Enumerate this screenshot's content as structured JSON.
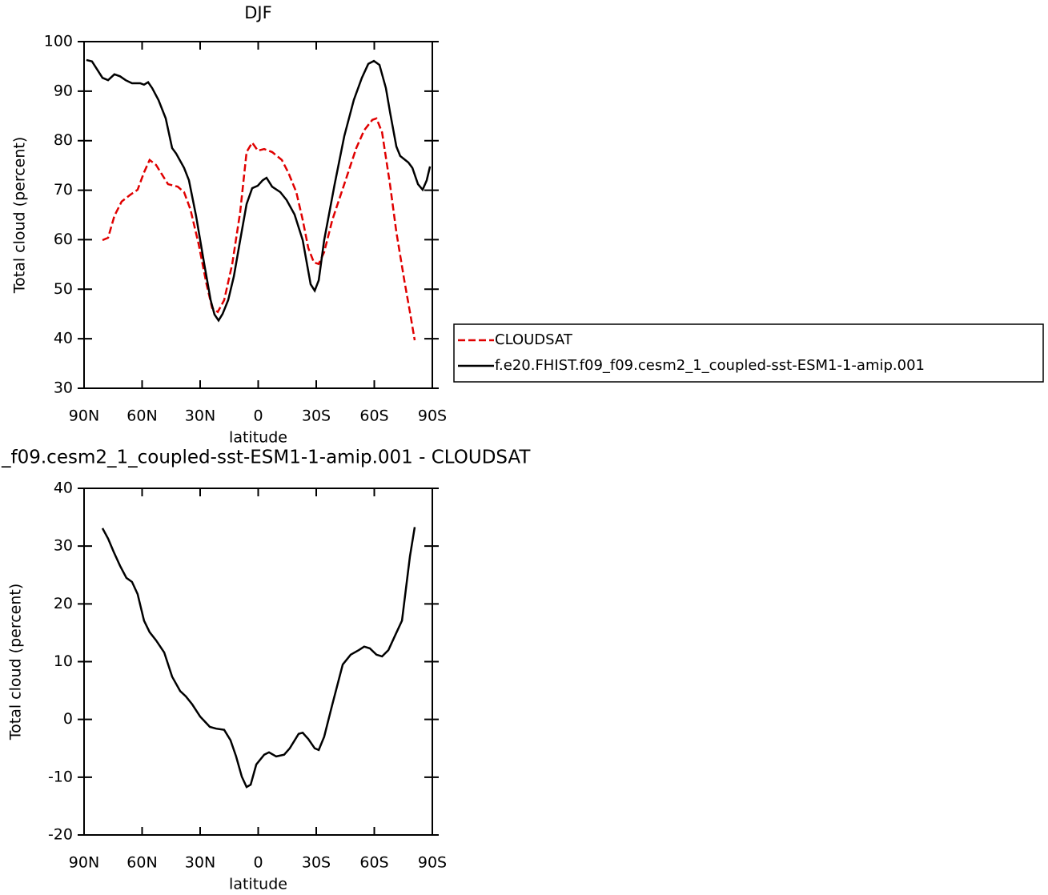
{
  "chart_data": [
    {
      "type": "line",
      "title": "DJF",
      "xlabel": "latitude",
      "ylabel": "Total cloud (percent)",
      "xlim": [
        90,
        -90
      ],
      "xticks": [
        {
          "value": 90,
          "label": "90N"
        },
        {
          "value": 60,
          "label": "60N"
        },
        {
          "value": 30,
          "label": "30N"
        },
        0,
        {
          "value": -30,
          "label": "30S"
        },
        {
          "value": -60,
          "label": "60S"
        },
        {
          "value": -90,
          "label": "90S"
        }
      ],
      "ylim": [
        30,
        100
      ],
      "yticks": [
        30,
        40,
        50,
        60,
        70,
        80,
        90,
        100
      ],
      "legend": "right",
      "series": [
        {
          "name": "CLOUDSAT",
          "color": "#e00000",
          "dash": true,
          "x": [
            80.5,
            77.6,
            74.3,
            70.6,
            66,
            62.3,
            59,
            56.1,
            52.8,
            46.6,
            41.6,
            38.3,
            35,
            30.8,
            26.7,
            23.8,
            20.9,
            17.6,
            13.4,
            9.3,
            6,
            3.1,
            0.2,
            -3.1,
            -7.2,
            -12.2,
            -15.5,
            -19.7,
            -23,
            -25.9,
            -28.8,
            -31.3,
            -34.1,
            -38.3,
            -44.5,
            -50.7,
            -54.8,
            -59,
            -61.1,
            -64,
            -68.1,
            -71.4,
            -75.5,
            -78.4,
            -80.9
          ],
          "values": [
            59.9,
            60.4,
            64.8,
            67.7,
            69.1,
            70.1,
            73.6,
            76.1,
            75.1,
            71.2,
            70.7,
            69.6,
            66.1,
            59.1,
            51,
            46.2,
            45.4,
            47.8,
            55.1,
            65.6,
            77.7,
            79.6,
            78,
            78.3,
            77.7,
            76.1,
            73.6,
            69.6,
            64,
            58.3,
            55.4,
            55.1,
            57.5,
            64,
            71.2,
            78.5,
            82.1,
            84.2,
            84.5,
            81.7,
            71.2,
            61.5,
            51.8,
            45.4,
            39.7
          ]
        },
        {
          "name": "f.e20.FHIST.f09_f09.cesm2_1_coupled-sst-ESM1-1-amip.001",
          "color": "#000000",
          "dash": false,
          "x": [
            88.8,
            85.9,
            80.5,
            77.6,
            74.3,
            71.4,
            68.5,
            65.2,
            61,
            59,
            56.9,
            54.8,
            51.5,
            47.8,
            44.5,
            42.4,
            38.3,
            35.8,
            32.1,
            27.9,
            24.6,
            22.6,
            20.5,
            18.4,
            15.5,
            12.6,
            9.3,
            6,
            3.1,
            0.2,
            -2.3,
            -4.3,
            -7.2,
            -11.4,
            -14.7,
            -18.8,
            -23,
            -27.1,
            -29.2,
            -31.3,
            -34.1,
            -39.5,
            -44.5,
            -49.4,
            -53.6,
            -56.9,
            -59.8,
            -62.7,
            -66,
            -68.1,
            -71.4,
            -73.4,
            -77.6,
            -79.7,
            -82.6,
            -85,
            -87.1,
            -88.8
          ],
          "values": [
            96.3,
            96,
            92.7,
            92.2,
            93.4,
            93,
            92.2,
            91.6,
            91.6,
            91.3,
            91.8,
            90.6,
            88.2,
            84.5,
            78.5,
            77.4,
            74.5,
            72,
            64.8,
            55.1,
            47.8,
            44.9,
            43.7,
            45,
            47.8,
            52.6,
            59.9,
            67.2,
            70.4,
            70.9,
            72,
            72.5,
            70.7,
            69.6,
            68,
            65.1,
            59.9,
            51,
            49.7,
            51.8,
            59.9,
            71.2,
            80.9,
            88.2,
            92.7,
            95.5,
            96.1,
            95.3,
            90.6,
            85.8,
            78.8,
            76.9,
            75.6,
            74.5,
            71.2,
            70.1,
            72,
            74.8
          ]
        }
      ]
    },
    {
      "type": "line",
      "title": "_f09.cesm2_1_coupled-sst-ESM1-1-amip.001 - CLOUDSAT",
      "xlabel": "latitude",
      "ylabel": "Total cloud (percent)",
      "xlim": [
        90,
        -90
      ],
      "xticks": [
        {
          "value": 90,
          "label": "90N"
        },
        {
          "value": 60,
          "label": "60N"
        },
        {
          "value": 30,
          "label": "30N"
        },
        0,
        {
          "value": -30,
          "label": "30S"
        },
        {
          "value": -60,
          "label": "60S"
        },
        {
          "value": -90,
          "label": "90S"
        }
      ],
      "ylim": [
        -20,
        40
      ],
      "yticks": [
        -20,
        -10,
        0,
        10,
        20,
        30,
        40
      ],
      "series": [
        {
          "color": "#000000",
          "dash": false,
          "x": [
            80.5,
            77.6,
            74.7,
            71.4,
            68.1,
            65.2,
            62.3,
            59,
            56.1,
            52.8,
            48.6,
            44.5,
            40.3,
            37.4,
            34.1,
            30,
            25,
            21.7,
            17.6,
            14.3,
            11.4,
            8.5,
            6,
            3.9,
            1,
            -3.1,
            -5.6,
            -9.3,
            -13.4,
            -16.3,
            -20.9,
            -23,
            -25.9,
            -29.2,
            -31.3,
            -34.1,
            -38.3,
            -43.7,
            -47.8,
            -52,
            -54.8,
            -57.7,
            -61.1,
            -64,
            -67.3,
            -70.6,
            -74.3,
            -78.4,
            -80.9
          ],
          "values": [
            33.1,
            31.3,
            29,
            26.6,
            24.5,
            23.8,
            21.7,
            17.1,
            15.1,
            13.7,
            11.6,
            7.4,
            4.9,
            4,
            2.6,
            0.5,
            -1.3,
            -1.6,
            -1.8,
            -3.6,
            -6.4,
            -9.9,
            -11.7,
            -11.3,
            -7.8,
            -6.1,
            -5.7,
            -6.4,
            -6.1,
            -5,
            -2.5,
            -2.3,
            -3.4,
            -5,
            -5.3,
            -3,
            2.6,
            9.5,
            11.2,
            12,
            12.6,
            12.3,
            11.2,
            10.9,
            12,
            14.4,
            17.1,
            28.2,
            33.3
          ]
        }
      ]
    }
  ]
}
